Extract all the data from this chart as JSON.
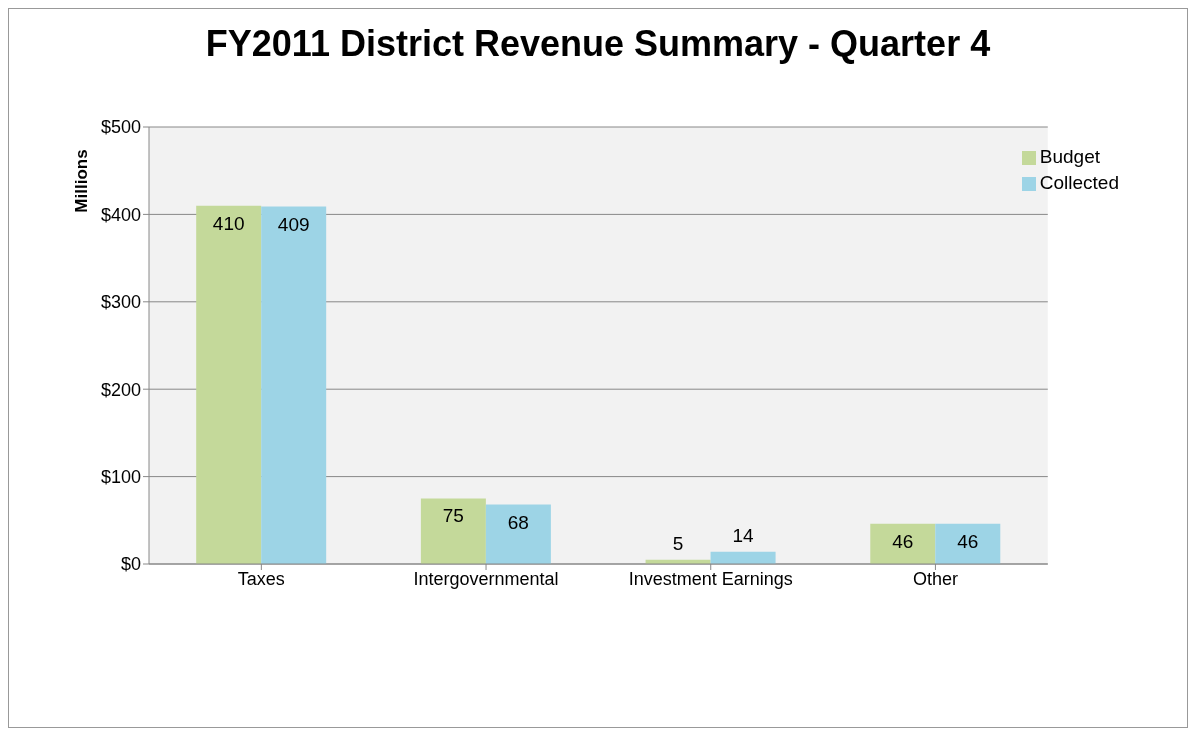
{
  "chart_data": {
    "type": "bar",
    "title": "FY2011 District Revenue Summary - Quarter 4",
    "ylabel": "Millions",
    "categories": [
      "Taxes",
      "Intergovernmental",
      "Investment Earnings",
      "Other"
    ],
    "series": [
      {
        "name": "Budget",
        "color": "#c4d99a",
        "values": [
          410,
          75,
          5,
          46
        ]
      },
      {
        "name": "Collected",
        "color": "#9dd4e6",
        "values": [
          409,
          68,
          14,
          46
        ]
      }
    ],
    "ylim": [
      0,
      500
    ],
    "yticks": [
      {
        "value": 0,
        "label": "$0"
      },
      {
        "value": 100,
        "label": "$100"
      },
      {
        "value": 200,
        "label": "$200"
      },
      {
        "value": 300,
        "label": "$300"
      },
      {
        "value": 400,
        "label": "$400"
      },
      {
        "value": 500,
        "label": "$500"
      }
    ],
    "grid": "y",
    "legend": "top right",
    "data_labels": true
  }
}
